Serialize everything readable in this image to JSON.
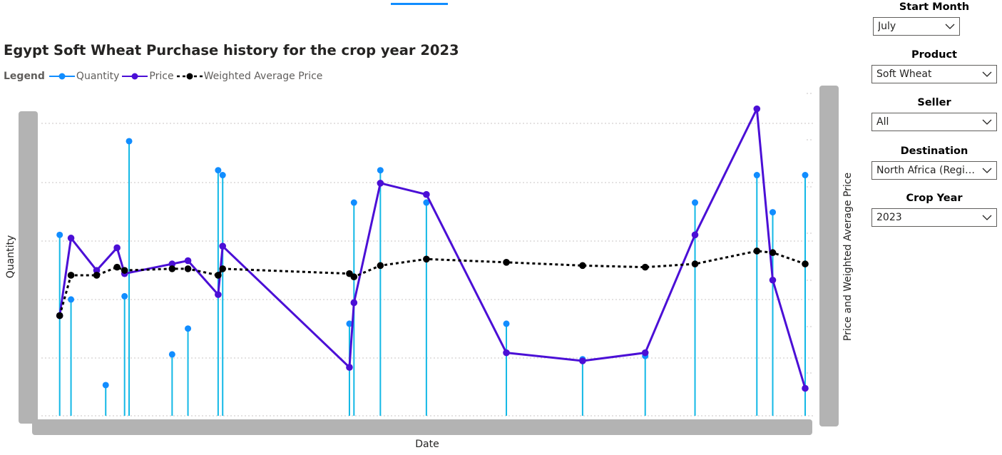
{
  "chart_data": {
    "type": "combo",
    "title": "Egypt Soft Wheat Purchase history for the crop year 2023",
    "legend_title": "Legend",
    "legend_position": "top-left",
    "xlabel": "Date",
    "ylabel_left": "Quantity",
    "ylabel_right": "Price and Weighted Average Price",
    "x_range": [
      0,
      100
    ],
    "ylim_left": [
      0,
      100
    ],
    "ylim_right": [
      0,
      100
    ],
    "series": [
      {
        "name": "Quantity",
        "kind": "lollipop",
        "axis": "left",
        "color": "#118dff",
        "points": [
          {
            "x": 1.2,
            "y": 56
          },
          {
            "x": 2.7,
            "y": 36
          },
          {
            "x": 7.3,
            "y": 9.5
          },
          {
            "x": 9.8,
            "y": 37
          },
          {
            "x": 10.4,
            "y": 85
          },
          {
            "x": 16.1,
            "y": 19
          },
          {
            "x": 18.2,
            "y": 27
          },
          {
            "x": 22.2,
            "y": 76
          },
          {
            "x": 22.8,
            "y": 74.5
          },
          {
            "x": 39.6,
            "y": 28.5
          },
          {
            "x": 40.2,
            "y": 66
          },
          {
            "x": 43.7,
            "y": 76
          },
          {
            "x": 49.8,
            "y": 66
          },
          {
            "x": 60.4,
            "y": 28.5
          },
          {
            "x": 70.5,
            "y": 17.5
          },
          {
            "x": 78.8,
            "y": 18.5
          },
          {
            "x": 85.4,
            "y": 66
          },
          {
            "x": 93.6,
            "y": 74.5
          },
          {
            "x": 95.7,
            "y": 63
          },
          {
            "x": 100,
            "y": 74.5
          }
        ]
      },
      {
        "name": "Price",
        "kind": "line",
        "axis": "right",
        "color": "#4b0fd6",
        "points": [
          {
            "x": 1.2,
            "y": 31
          },
          {
            "x": 2.7,
            "y": 55
          },
          {
            "x": 6.1,
            "y": 45
          },
          {
            "x": 8.8,
            "y": 52
          },
          {
            "x": 9.8,
            "y": 44
          },
          {
            "x": 16.1,
            "y": 47
          },
          {
            "x": 18.2,
            "y": 48
          },
          {
            "x": 22.2,
            "y": 37.5
          },
          {
            "x": 22.8,
            "y": 52.5
          },
          {
            "x": 39.6,
            "y": 15
          },
          {
            "x": 40.2,
            "y": 35
          },
          {
            "x": 43.7,
            "y": 72
          },
          {
            "x": 49.8,
            "y": 68.5
          },
          {
            "x": 60.4,
            "y": 19.5
          },
          {
            "x": 70.5,
            "y": 17
          },
          {
            "x": 78.8,
            "y": 19.5
          },
          {
            "x": 85.4,
            "y": 56
          },
          {
            "x": 93.6,
            "y": 95
          },
          {
            "x": 95.7,
            "y": 42
          },
          {
            "x": 100,
            "y": 8.5
          }
        ]
      },
      {
        "name": "Weighted Average Price",
        "kind": "dotted-line",
        "axis": "right",
        "color": "#000000",
        "points": [
          {
            "x": 1.2,
            "y": 31
          },
          {
            "x": 2.7,
            "y": 43.5
          },
          {
            "x": 6.1,
            "y": 43.5
          },
          {
            "x": 8.8,
            "y": 46
          },
          {
            "x": 9.8,
            "y": 45
          },
          {
            "x": 16.1,
            "y": 45.5
          },
          {
            "x": 18.2,
            "y": 45.5
          },
          {
            "x": 22.2,
            "y": 43.5
          },
          {
            "x": 22.8,
            "y": 45.5
          },
          {
            "x": 39.6,
            "y": 44
          },
          {
            "x": 40.2,
            "y": 43
          },
          {
            "x": 43.7,
            "y": 46.5
          },
          {
            "x": 49.8,
            "y": 48.5
          },
          {
            "x": 60.4,
            "y": 47.5
          },
          {
            "x": 70.5,
            "y": 46.5
          },
          {
            "x": 78.8,
            "y": 46
          },
          {
            "x": 85.4,
            "y": 47
          },
          {
            "x": 93.6,
            "y": 51
          },
          {
            "x": 95.7,
            "y": 50.5
          },
          {
            "x": 100,
            "y": 47
          }
        ]
      }
    ]
  },
  "slicers": [
    {
      "label": "Start Month",
      "value": "July"
    },
    {
      "label": "Product",
      "value": "Soft Wheat"
    },
    {
      "label": "Seller",
      "value": "All"
    },
    {
      "label": "Destination",
      "value": "North Africa (Region)..."
    },
    {
      "label": "Crop Year",
      "value": "2023"
    }
  ],
  "colors": {
    "accent": "#118dff",
    "price": "#4b0fd6",
    "wap": "#000000",
    "axis_bar": "#b3b3b3",
    "grid": "#c8c6c4"
  }
}
